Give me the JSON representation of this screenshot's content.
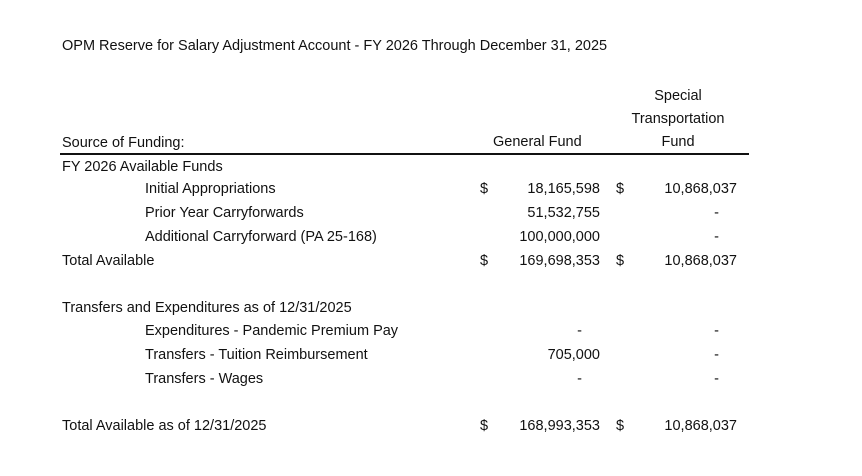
{
  "title": "OPM Reserve for Salary Adjustment Account - FY 2026 Through December 31, 2025",
  "headers": {
    "source": "Source of Funding:",
    "general_fund": "General Fund",
    "stf_line1": "Special",
    "stf_line2": "Transportation",
    "stf_line3": "Fund"
  },
  "rows": [
    {
      "label": "FY 2026 Available Funds"
    },
    {
      "label": "Initial Appropriations",
      "gf_dollar": "$",
      "gf": "18,165,598",
      "stf_dollar": "$",
      "stf": "10,868,037"
    },
    {
      "label": "Prior Year Carryforwards",
      "gf": "51,532,755",
      "stf": "-"
    },
    {
      "label": "Additional Carryforward (PA 25-168)",
      "gf": "100,000,000",
      "stf": "-"
    },
    {
      "label": "Total Available",
      "gf_dollar": "$",
      "gf": "169,698,353",
      "stf_dollar": "$",
      "stf": "10,868,037"
    },
    {
      "label": "Transfers and Expenditures as of 12/31/2025"
    },
    {
      "label": "Expenditures - Pandemic Premium Pay",
      "gf": "-",
      "stf": "-"
    },
    {
      "label": "Transfers -  Tuition Reimbursement",
      "gf": "705,000",
      "stf": "-"
    },
    {
      "label": "Transfers -  Wages",
      "gf": "-",
      "stf": "-"
    },
    {
      "label": "Total Available as of 12/31/2025",
      "gf_dollar": "$",
      "gf": "168,993,353",
      "stf_dollar": "$",
      "stf": "10,868,037"
    }
  ]
}
